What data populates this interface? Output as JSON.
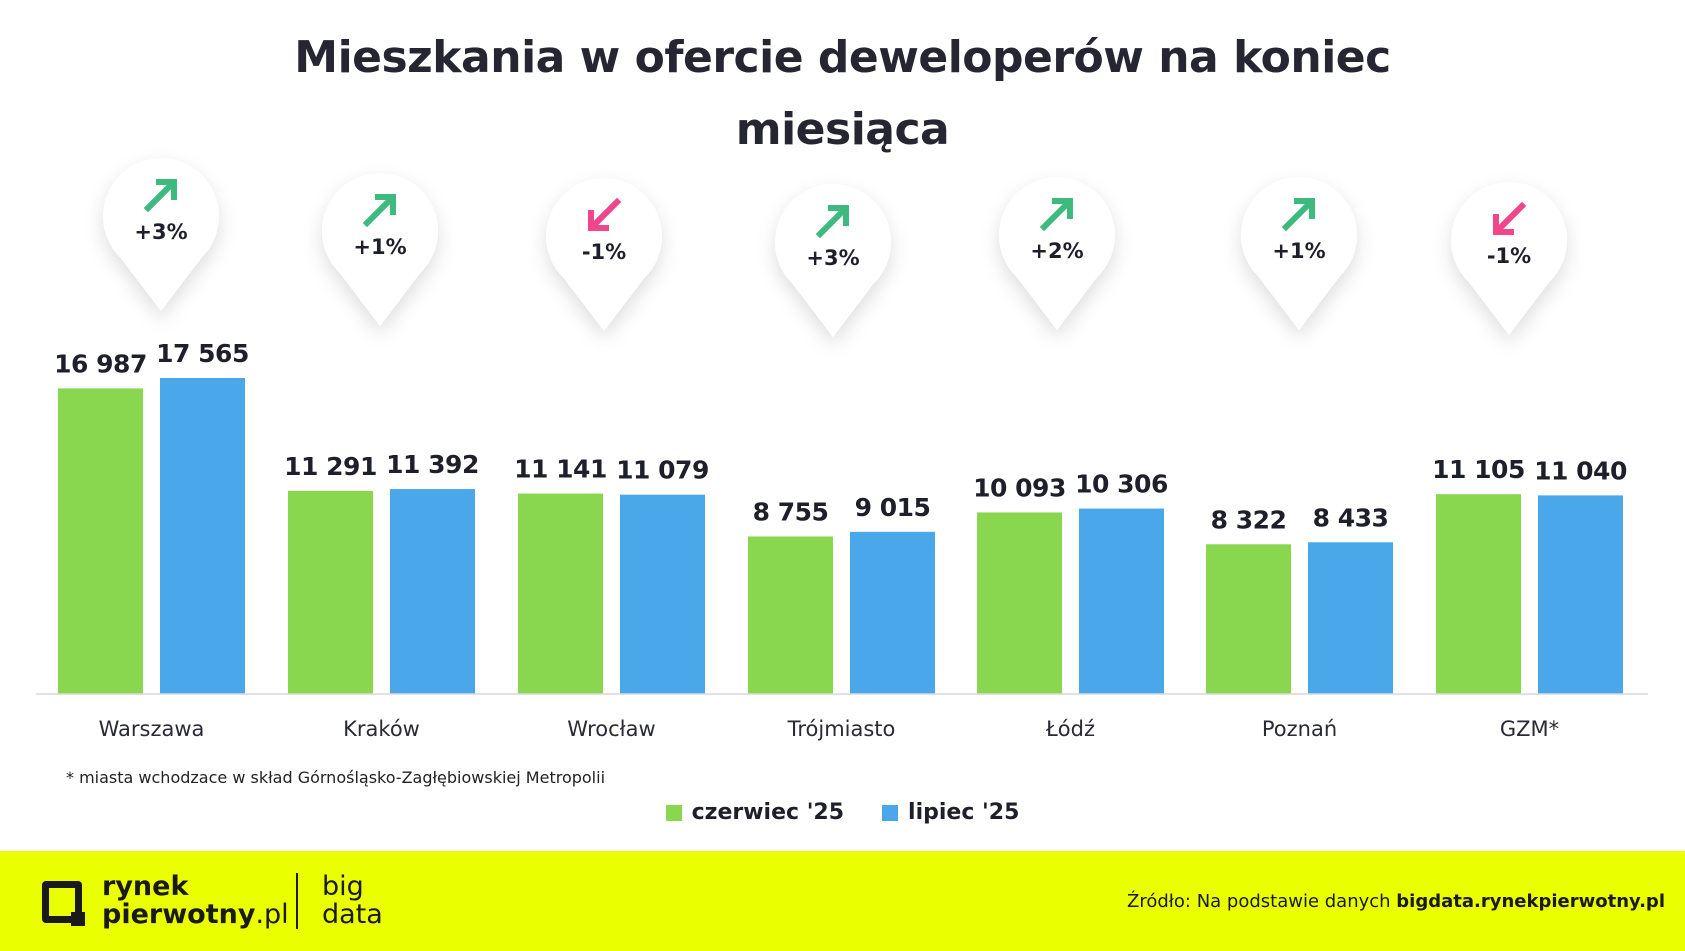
{
  "title": "Mieszkania w ofercie deweloperów na koniec miesiąca",
  "title_lines": [
    "Mieszkania w ofercie deweloperów na koniec",
    "miesiąca"
  ],
  "chart_data": {
    "type": "bar",
    "title": "Mieszkania w ofercie deweloperów na koniec miesiąca",
    "categories": [
      "Warszawa",
      "Kraków",
      "Wrocław",
      "Trójmiasto",
      "Łódź",
      "Poznań",
      "GZM*"
    ],
    "series": [
      {
        "name": "czerwiec '25",
        "color": "#89d64f",
        "values": [
          16987,
          11291,
          11141,
          8755,
          10093,
          8322,
          11105
        ],
        "labels": [
          "16 987",
          "11 291",
          "11 141",
          "8 755",
          "10 093",
          "8 322",
          "11 105"
        ]
      },
      {
        "name": "lipiec '25",
        "color": "#4aa8ea",
        "values": [
          17565,
          11392,
          11079,
          9015,
          10306,
          8433,
          11040
        ],
        "labels": [
          "17 565",
          "11 392",
          "11 079",
          "9 015",
          "10 306",
          "8 433",
          "11 040"
        ]
      }
    ],
    "changes": [
      {
        "label": "+3%",
        "direction": "up"
      },
      {
        "label": "+1%",
        "direction": "up"
      },
      {
        "label": "-1%",
        "direction": "down"
      },
      {
        "label": "+3%",
        "direction": "up"
      },
      {
        "label": "+2%",
        "direction": "up"
      },
      {
        "label": "+1%",
        "direction": "up"
      },
      {
        "label": "-1%",
        "direction": "down"
      }
    ],
    "colors": {
      "up": "#3dbb7e",
      "down": "#f0468c"
    },
    "ylim": [
      0,
      18000
    ],
    "grid": false,
    "legend": "bottom-center"
  },
  "footnote": "* miasta wchodzace w skład Górnośląsko-Zagłębiowskiej Metropolii",
  "legend": [
    {
      "label": "czerwiec '25",
      "color": "#89d64f"
    },
    {
      "label": "lipiec '25",
      "color": "#4aa8ea"
    }
  ],
  "footer": {
    "logo_line1": "rynek",
    "logo_line2": "pierwotny",
    "logo_suffix": ".pl",
    "brand_line1": "big",
    "brand_line2": "data",
    "source_prefix": "Źródło: Na podstawie danych ",
    "source_link": "bigdata.rynekpierwotny.pl"
  }
}
